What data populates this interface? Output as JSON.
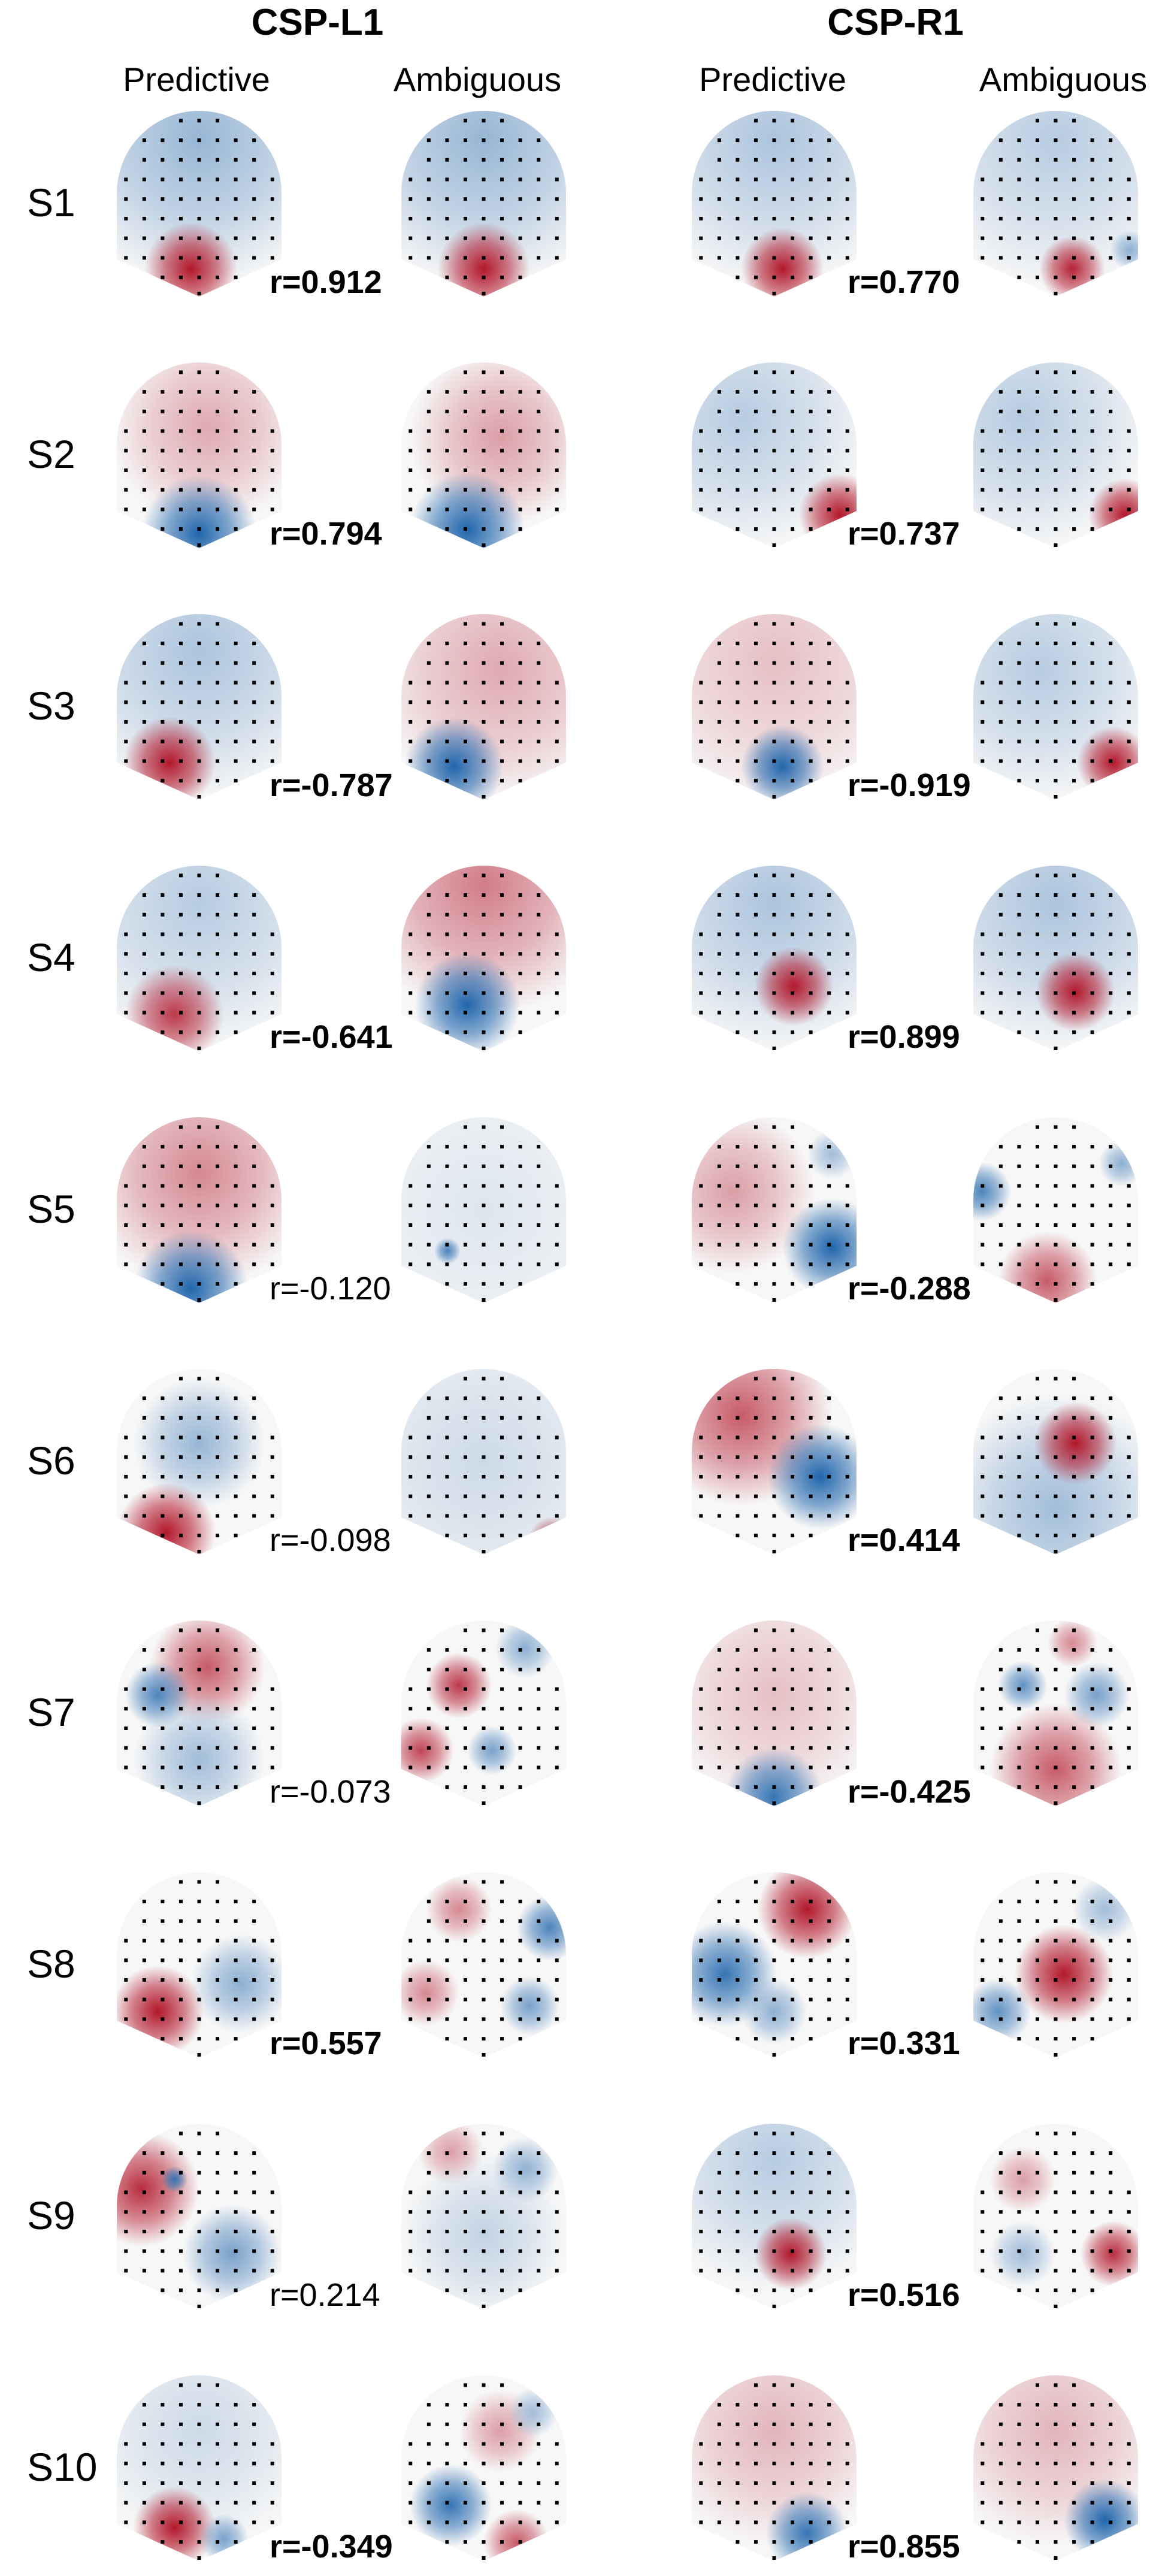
{
  "columns": [
    {
      "title": "CSP-L1",
      "conditions": [
        "Predictive",
        "Ambiguous"
      ]
    },
    {
      "title": "CSP-R1",
      "conditions": [
        "Predictive",
        "Ambiguous"
      ]
    }
  ],
  "colors": {
    "positive": "#b2182b",
    "negative": "#2166ac",
    "neutral": "#f7f7f7",
    "sensor": "#000000"
  },
  "rows": [
    {
      "subject": "S1",
      "left": {
        "r": "r=0.912",
        "significant": true
      },
      "right": {
        "r": "r=0.770",
        "significant": true
      }
    },
    {
      "subject": "S2",
      "left": {
        "r": "r=0.794",
        "significant": true
      },
      "right": {
        "r": "r=0.737",
        "significant": true
      }
    },
    {
      "subject": "S3",
      "left": {
        "r": "r=-0.787",
        "significant": true
      },
      "right": {
        "r": "r=-0.919",
        "significant": true
      }
    },
    {
      "subject": "S4",
      "left": {
        "r": "r=-0.641",
        "significant": true
      },
      "right": {
        "r": "r=0.899",
        "significant": true
      }
    },
    {
      "subject": "S5",
      "left": {
        "r": "r=-0.120",
        "significant": false
      },
      "right": {
        "r": "r=-0.288",
        "significant": true
      }
    },
    {
      "subject": "S6",
      "left": {
        "r": "r=-0.098",
        "significant": false
      },
      "right": {
        "r": "r=0.414",
        "significant": true
      }
    },
    {
      "subject": "S7",
      "left": {
        "r": "r=-0.073",
        "significant": false
      },
      "right": {
        "r": "r=-0.425",
        "significant": true
      }
    },
    {
      "subject": "S8",
      "left": {
        "r": "r=0.557",
        "significant": true
      },
      "right": {
        "r": "r=0.331",
        "significant": true
      }
    },
    {
      "subject": "S9",
      "left": {
        "r": "r=0.214",
        "significant": false
      },
      "right": {
        "r": "r=0.516",
        "significant": true
      }
    },
    {
      "subject": "S10",
      "left": {
        "r": "r=-0.349",
        "significant": true
      },
      "right": {
        "r": "r=0.855",
        "significant": true
      }
    }
  ]
}
